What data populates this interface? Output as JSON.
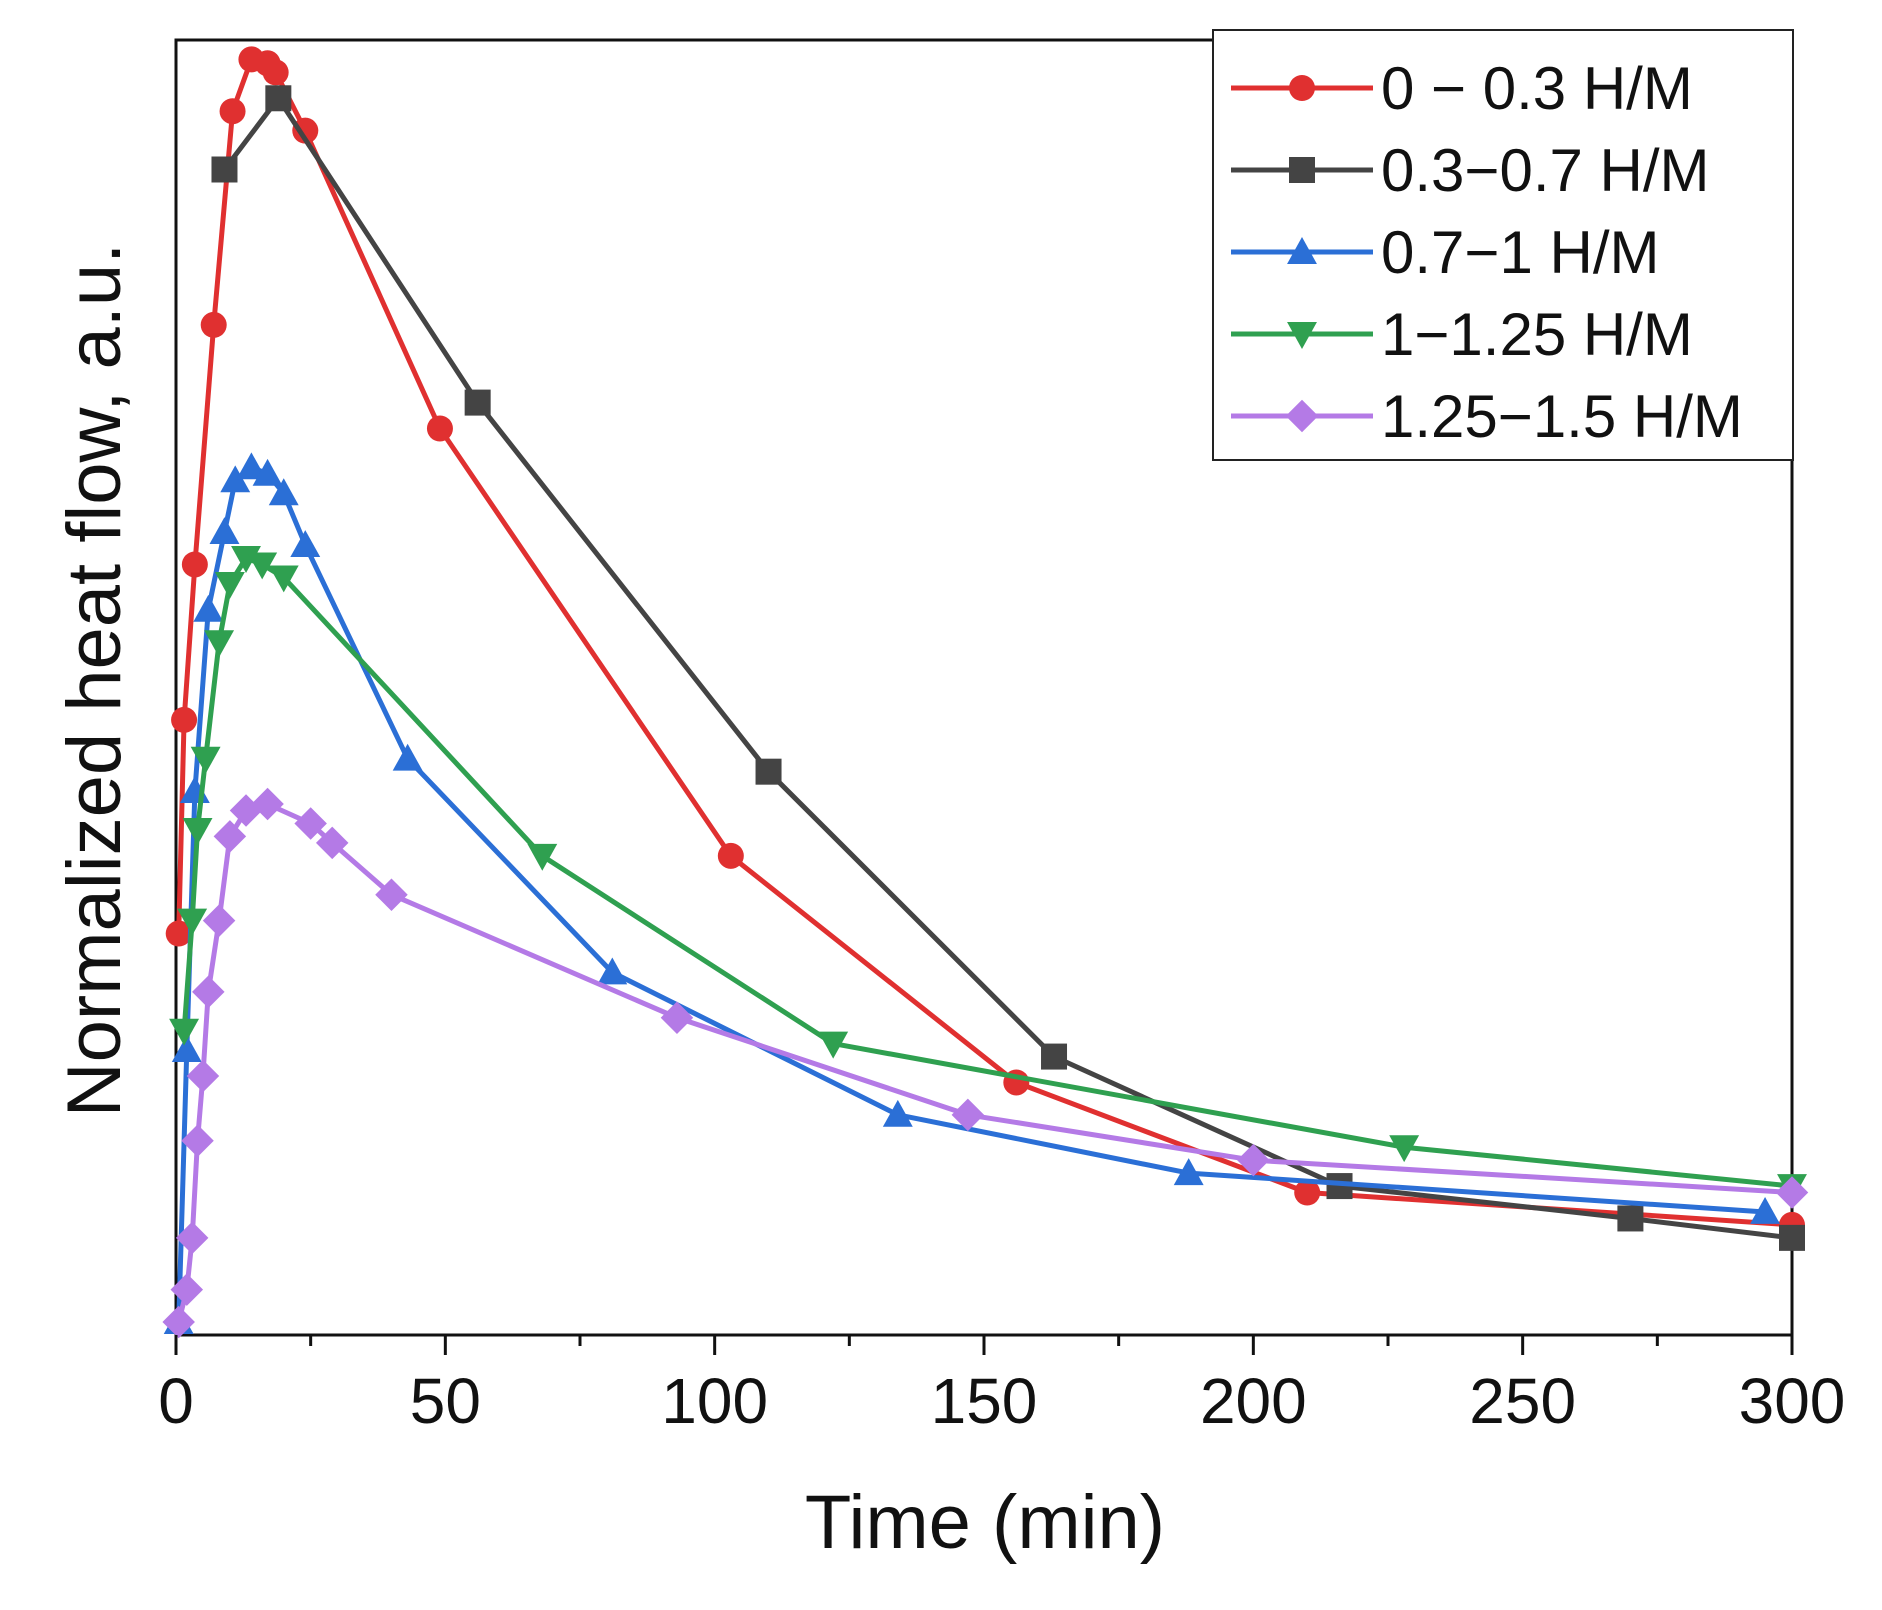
{
  "chart_data": {
    "type": "line",
    "title": "",
    "xlabel": "Time (min)",
    "ylabel": "Normalized heat flow, a.u.",
    "xlim": [
      0,
      300
    ],
    "ylim": [
      0,
      1.0
    ],
    "x_ticks": [
      0,
      50,
      100,
      150,
      200,
      250,
      300
    ],
    "x_tick_labels": [
      "0",
      "50",
      "100",
      "150",
      "200",
      "250",
      "300"
    ],
    "y_tick_labels_shown": false,
    "grid": false,
    "legend_position": "top-right",
    "series": [
      {
        "name": "0 − 0.3 H/M",
        "color": "#e03030",
        "marker": "circle",
        "x": [
          0.5,
          1.5,
          3.5,
          7,
          10.5,
          14,
          17,
          18.5,
          24,
          49,
          103,
          156,
          210,
          300
        ],
        "y": [
          0.31,
          0.475,
          0.595,
          0.78,
          0.945,
          0.985,
          0.982,
          0.975,
          0.93,
          0.7,
          0.37,
          0.195,
          0.11,
          0.085
        ]
      },
      {
        "name": "0.3−0.7 H/M",
        "color": "#444444",
        "marker": "square",
        "x": [
          9,
          19,
          56,
          110,
          163,
          216,
          270,
          300
        ],
        "y": [
          0.9,
          0.955,
          0.72,
          0.435,
          0.215,
          0.115,
          0.09,
          0.075
        ]
      },
      {
        "name": "0.7−1 H/M",
        "color": "#2b6fd6",
        "marker": "triangle-up",
        "x": [
          0.5,
          2,
          3.5,
          6,
          9,
          11,
          14,
          17,
          20,
          24,
          43,
          81,
          134,
          188,
          295
        ],
        "y": [
          0.01,
          0.22,
          0.42,
          0.56,
          0.62,
          0.66,
          0.67,
          0.665,
          0.65,
          0.61,
          0.445,
          0.28,
          0.17,
          0.125,
          0.095
        ]
      },
      {
        "name": "1−1.25 H/M",
        "color": "#2fa050",
        "marker": "triangle-down",
        "x": [
          1.5,
          3,
          4,
          5.5,
          8,
          10,
          13,
          16,
          20,
          68,
          122,
          228,
          300
        ],
        "y": [
          0.235,
          0.32,
          0.39,
          0.445,
          0.535,
          0.58,
          0.6,
          0.595,
          0.585,
          0.37,
          0.225,
          0.145,
          0.115
        ]
      },
      {
        "name": "1.25−1.5 H/M",
        "color": "#b47ae6",
        "marker": "diamond",
        "x": [
          0.5,
          2,
          3,
          4,
          5,
          6,
          8,
          10,
          13,
          17,
          25,
          29,
          40,
          93,
          147,
          200,
          300
        ],
        "y": [
          0.01,
          0.035,
          0.075,
          0.15,
          0.2,
          0.265,
          0.32,
          0.385,
          0.405,
          0.41,
          0.395,
          0.38,
          0.34,
          0.245,
          0.17,
          0.135,
          0.11
        ]
      }
    ]
  }
}
